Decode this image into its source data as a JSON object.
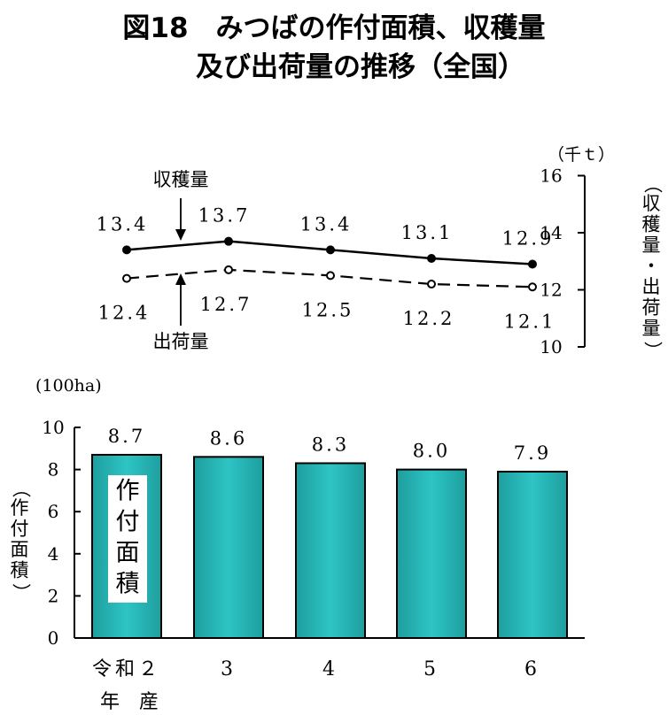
{
  "title": {
    "line1": "図18　みつばの作付面積、収穫量",
    "line2": "及び出荷量の推移（全国）"
  },
  "chart_data": [
    {
      "type": "line",
      "categories": [
        "令和２年産",
        "3",
        "4",
        "5",
        "6"
      ],
      "series": [
        {
          "name": "収穫量",
          "values": [
            13.4,
            13.7,
            13.4,
            13.1,
            12.9
          ],
          "style": "solid",
          "marker": "filled-circle"
        },
        {
          "name": "出荷量",
          "values": [
            12.4,
            12.7,
            12.5,
            12.2,
            12.1
          ],
          "style": "dashed",
          "marker": "open-circle"
        }
      ],
      "data_labels": {
        "harvest": [
          "13.4",
          "13.7",
          "13.4",
          "13.1",
          "12.9"
        ],
        "shipment": [
          "12.4",
          "12.7",
          "12.5",
          "12.2",
          "12.1"
        ]
      },
      "ylabel": "（収穫量・出荷量）",
      "unit": "（千ｔ）",
      "ylim": [
        10,
        16
      ],
      "yticks": [
        "10",
        "12",
        "14",
        "16"
      ],
      "axis_position": "right",
      "grid": false
    },
    {
      "type": "bar",
      "categories": [
        "令和２",
        "3",
        "4",
        "5",
        "6"
      ],
      "category_suffix": "年　産",
      "values": [
        8.7,
        8.6,
        8.3,
        8.0,
        7.9
      ],
      "data_labels": [
        "8.7",
        "8.6",
        "8.3",
        "8.0",
        "7.9"
      ],
      "series_label": "作付面積",
      "ylabel": "（作付面積）",
      "unit": "(100ha)",
      "ylim": [
        0,
        10
      ],
      "yticks": [
        "0",
        "2",
        "4",
        "6",
        "8",
        "10"
      ],
      "bar_color": "#2ec4c4",
      "grid": false
    }
  ]
}
